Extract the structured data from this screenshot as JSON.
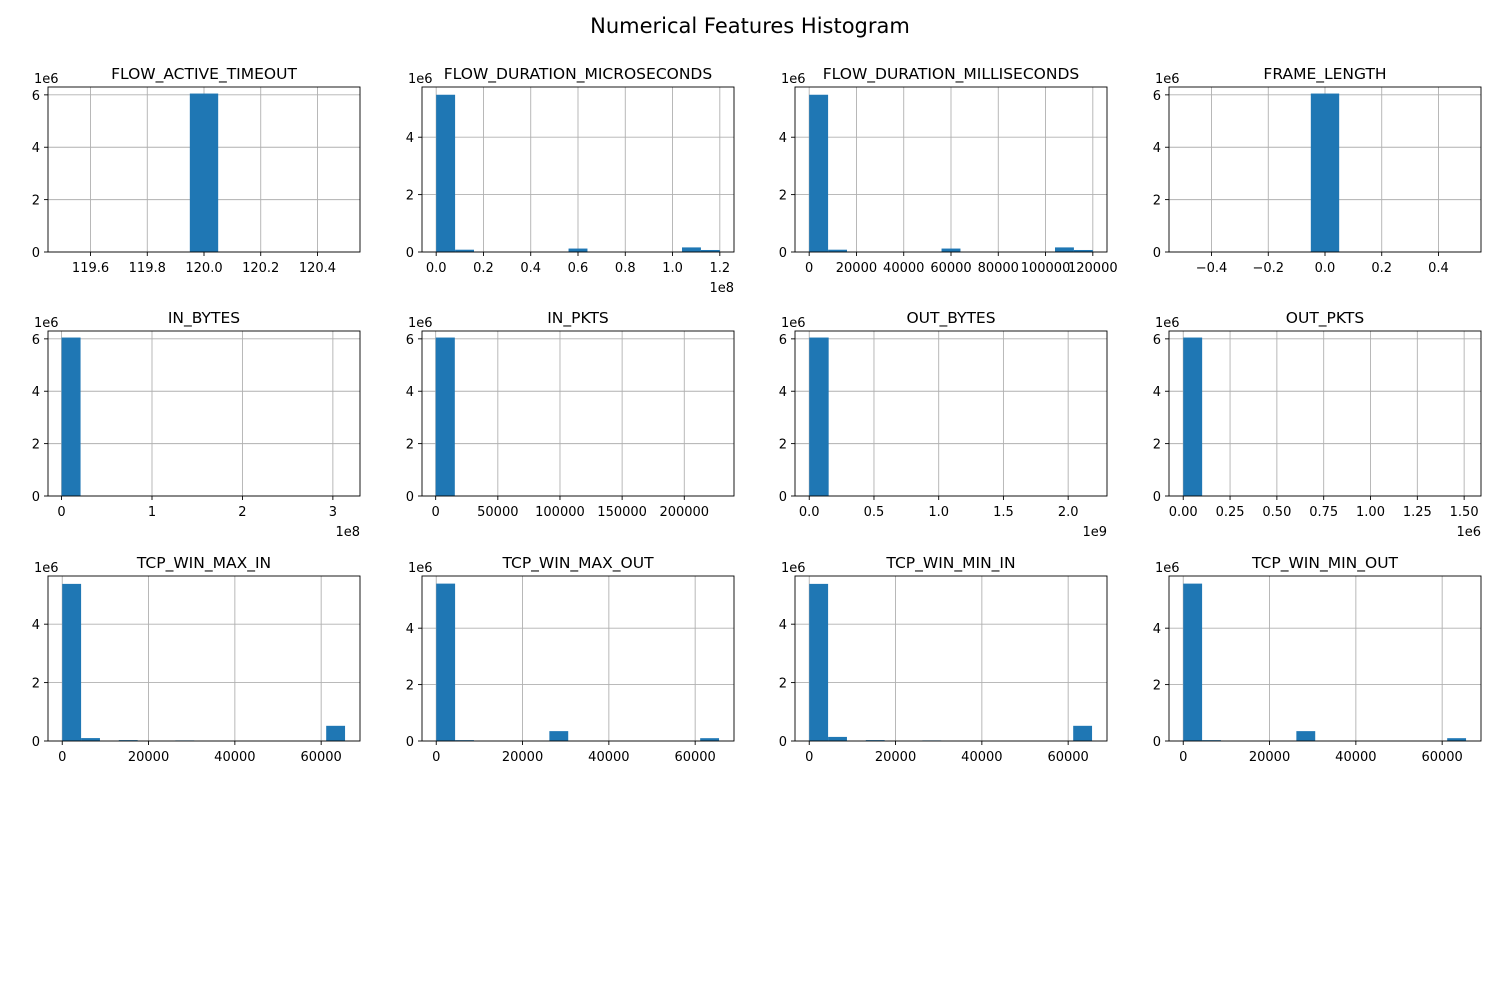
{
  "figure": {
    "title": "Numerical Features Histogram"
  },
  "style": {
    "bar_color": "#1f77b4",
    "grid_color": "#b0b0b0",
    "grid": true
  },
  "chart_data": [
    {
      "type": "bar",
      "title": "FLOW_ACTIVE_TIMEOUT",
      "xlim": [
        119.45,
        120.55
      ],
      "ylim": [
        0,
        6.3
      ],
      "y_multiplier": "1e6",
      "x_multiplier": "",
      "xticks": [
        119.6,
        119.8,
        120.0,
        120.2,
        120.4
      ],
      "xtick_labels": [
        "119.6",
        "119.8",
        "120.0",
        "120.2",
        "120.4"
      ],
      "yticks": [
        0,
        2,
        4,
        6
      ],
      "ytick_labels": [
        "0",
        "2",
        "4",
        "6"
      ],
      "bins": [
        [
          119.95,
          120.05,
          6.05
        ]
      ]
    },
    {
      "type": "bar",
      "title": "FLOW_DURATION_MICROSECONDS",
      "xlim": [
        -6000000,
        126000000
      ],
      "ylim": [
        0,
        5.75
      ],
      "y_multiplier": "1e6",
      "x_multiplier": "1e8",
      "xticks": [
        0,
        20000000,
        40000000,
        60000000,
        80000000,
        100000000,
        120000000
      ],
      "xtick_labels": [
        "0.0",
        "0.2",
        "0.4",
        "0.6",
        "0.8",
        "1.0",
        "1.2"
      ],
      "yticks": [
        0,
        2,
        4
      ],
      "ytick_labels": [
        "0",
        "2",
        "4"
      ],
      "bins": [
        [
          0,
          8000000,
          5.48
        ],
        [
          8000000,
          16000000,
          0.08
        ],
        [
          56000000,
          64000000,
          0.12
        ],
        [
          104000000,
          112000000,
          0.16
        ],
        [
          112000000,
          120000000,
          0.07
        ]
      ]
    },
    {
      "type": "bar",
      "title": "FLOW_DURATION_MILLISECONDS",
      "xlim": [
        -6000,
        126000
      ],
      "ylim": [
        0,
        5.75
      ],
      "y_multiplier": "1e6",
      "x_multiplier": "",
      "xticks": [
        0,
        20000,
        40000,
        60000,
        80000,
        100000,
        120000
      ],
      "xtick_labels": [
        "0",
        "20000",
        "40000",
        "60000",
        "80000",
        "100000",
        "120000"
      ],
      "yticks": [
        0,
        2,
        4
      ],
      "ytick_labels": [
        "0",
        "2",
        "4"
      ],
      "bins": [
        [
          0,
          8000,
          5.48
        ],
        [
          8000,
          16000,
          0.08
        ],
        [
          56000,
          64000,
          0.12
        ],
        [
          104000,
          112000,
          0.16
        ],
        [
          112000,
          120000,
          0.07
        ]
      ]
    },
    {
      "type": "bar",
      "title": "FRAME_LENGTH",
      "xlim": [
        -0.55,
        0.55
      ],
      "ylim": [
        0,
        6.3
      ],
      "y_multiplier": "1e6",
      "x_multiplier": "",
      "xticks": [
        -0.4,
        -0.2,
        0.0,
        0.2,
        0.4
      ],
      "xtick_labels": [
        "−0.4",
        "−0.2",
        "0.0",
        "0.2",
        "0.4"
      ],
      "yticks": [
        0,
        2,
        4,
        6
      ],
      "ytick_labels": [
        "0",
        "2",
        "4",
        "6"
      ],
      "bins": [
        [
          -0.05,
          0.05,
          6.05
        ]
      ]
    },
    {
      "type": "bar",
      "title": "IN_BYTES",
      "xlim": [
        -15000000,
        330000000
      ],
      "ylim": [
        0,
        6.3
      ],
      "y_multiplier": "1e6",
      "x_multiplier": "1e8",
      "xticks": [
        0,
        100000000,
        200000000,
        300000000
      ],
      "xtick_labels": [
        "0",
        "1",
        "2",
        "3"
      ],
      "yticks": [
        0,
        2,
        4,
        6
      ],
      "ytick_labels": [
        "0",
        "2",
        "4",
        "6"
      ],
      "bins": [
        [
          0,
          21000000,
          6.05
        ]
      ]
    },
    {
      "type": "bar",
      "title": "IN_PKTS",
      "xlim": [
        -11000,
        240000
      ],
      "ylim": [
        0,
        6.3
      ],
      "y_multiplier": "1e6",
      "x_multiplier": "",
      "xticks": [
        0,
        50000,
        100000,
        150000,
        200000
      ],
      "xtick_labels": [
        "0",
        "50000",
        "100000",
        "150000",
        "200000"
      ],
      "yticks": [
        0,
        2,
        4,
        6
      ],
      "ytick_labels": [
        "0",
        "2",
        "4",
        "6"
      ],
      "bins": [
        [
          0,
          15400,
          6.05
        ]
      ]
    },
    {
      "type": "bar",
      "title": "OUT_BYTES",
      "xlim": [
        -110000000,
        2300000000
      ],
      "ylim": [
        0,
        6.3
      ],
      "y_multiplier": "1e6",
      "x_multiplier": "1e9",
      "xticks": [
        0,
        500000000,
        1000000000,
        1500000000,
        2000000000
      ],
      "xtick_labels": [
        "0.0",
        "0.5",
        "1.0",
        "1.5",
        "2.0"
      ],
      "yticks": [
        0,
        2,
        4,
        6
      ],
      "ytick_labels": [
        "0",
        "2",
        "4",
        "6"
      ],
      "bins": [
        [
          0,
          150000000,
          6.05
        ]
      ]
    },
    {
      "type": "bar",
      "title": "OUT_PKTS",
      "xlim": [
        -76000,
        1590000
      ],
      "ylim": [
        0,
        6.3
      ],
      "y_multiplier": "1e6",
      "x_multiplier": "1e6",
      "xticks": [
        0,
        250000,
        500000,
        750000,
        1000000,
        1250000,
        1500000
      ],
      "xtick_labels": [
        "0.00",
        "0.25",
        "0.50",
        "0.75",
        "1.00",
        "1.25",
        "1.50"
      ],
      "yticks": [
        0,
        2,
        4,
        6
      ],
      "ytick_labels": [
        "0",
        "2",
        "4",
        "6"
      ],
      "bins": [
        [
          0,
          101000,
          6.05
        ]
      ]
    },
    {
      "type": "bar",
      "title": "TCP_WIN_MAX_IN",
      "xlim": [
        -3300,
        69000
      ],
      "ylim": [
        0,
        5.65
      ],
      "y_multiplier": "1e6",
      "x_multiplier": "",
      "xticks": [
        0,
        20000,
        40000,
        60000
      ],
      "xtick_labels": [
        "0",
        "20000",
        "40000",
        "60000"
      ],
      "yticks": [
        0,
        2,
        4
      ],
      "ytick_labels": [
        "0",
        "2",
        "4"
      ],
      "bins": [
        [
          0,
          4369,
          5.38
        ],
        [
          4369,
          8738,
          0.1
        ],
        [
          13107,
          17476,
          0.03
        ],
        [
          26214,
          30583,
          0.02
        ],
        [
          61166,
          65535,
          0.52
        ]
      ]
    },
    {
      "type": "bar",
      "title": "TCP_WIN_MAX_OUT",
      "xlim": [
        -3300,
        69000
      ],
      "ylim": [
        0,
        5.85
      ],
      "y_multiplier": "1e6",
      "x_multiplier": "",
      "xticks": [
        0,
        20000,
        40000,
        60000
      ],
      "xtick_labels": [
        "0",
        "20000",
        "40000",
        "60000"
      ],
      "yticks": [
        0,
        2,
        4
      ],
      "ytick_labels": [
        "0",
        "2",
        "4"
      ],
      "bins": [
        [
          0,
          4369,
          5.58
        ],
        [
          4369,
          8738,
          0.03
        ],
        [
          26214,
          30583,
          0.35
        ],
        [
          61166,
          65535,
          0.1
        ]
      ]
    },
    {
      "type": "bar",
      "title": "TCP_WIN_MIN_IN",
      "xlim": [
        -3300,
        69000
      ],
      "ylim": [
        0,
        5.65
      ],
      "y_multiplier": "1e6",
      "x_multiplier": "",
      "xticks": [
        0,
        20000,
        40000,
        60000
      ],
      "xtick_labels": [
        "0",
        "20000",
        "40000",
        "60000"
      ],
      "yticks": [
        0,
        2,
        4
      ],
      "ytick_labels": [
        "0",
        "2",
        "4"
      ],
      "bins": [
        [
          0,
          4369,
          5.38
        ],
        [
          4369,
          8738,
          0.14
        ],
        [
          13107,
          17476,
          0.03
        ],
        [
          26214,
          30583,
          0.02
        ],
        [
          61166,
          65535,
          0.52
        ]
      ]
    },
    {
      "type": "bar",
      "title": "TCP_WIN_MIN_OUT",
      "xlim": [
        -3300,
        69000
      ],
      "ylim": [
        0,
        5.85
      ],
      "y_multiplier": "1e6",
      "x_multiplier": "",
      "xticks": [
        0,
        20000,
        40000,
        60000
      ],
      "xtick_labels": [
        "0",
        "20000",
        "40000",
        "60000"
      ],
      "yticks": [
        0,
        2,
        4
      ],
      "ytick_labels": [
        "0",
        "2",
        "4"
      ],
      "bins": [
        [
          0,
          4369,
          5.58
        ],
        [
          4369,
          8738,
          0.03
        ],
        [
          26214,
          30583,
          0.35
        ],
        [
          61166,
          65535,
          0.1
        ]
      ]
    }
  ]
}
